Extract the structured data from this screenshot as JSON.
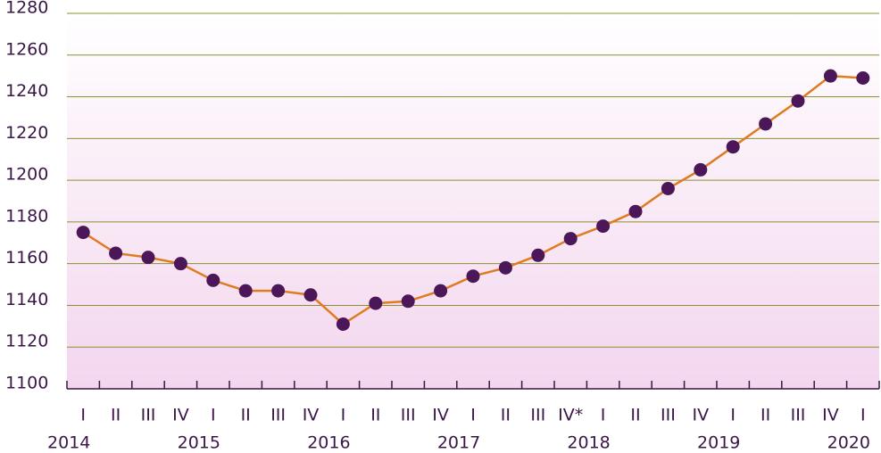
{
  "chart_data": {
    "type": "line",
    "categories": [
      "I",
      "II",
      "III",
      "IV",
      "I",
      "II",
      "III",
      "IV",
      "I",
      "II",
      "III",
      "IV",
      "I",
      "II",
      "III",
      "IV*",
      "I",
      "II",
      "III",
      "IV",
      "I",
      "II",
      "III",
      "IV",
      "I"
    ],
    "year_labels": [
      "2014",
      null,
      null,
      null,
      "2015",
      null,
      null,
      null,
      "2016",
      null,
      null,
      null,
      "2017",
      null,
      null,
      null,
      "2018",
      null,
      null,
      null,
      "2019",
      null,
      null,
      null,
      "2020"
    ],
    "series": [
      {
        "color": "#e07b1f",
        "marker_color": "#4b1759",
        "values": [
          1175,
          1165,
          1163,
          1160,
          1152,
          1147,
          1147,
          1145,
          1131,
          1141,
          1142,
          1147,
          1154,
          1158,
          1164,
          1172,
          1178,
          1185,
          1196,
          1205,
          1216,
          1227,
          1238,
          1250,
          1249
        ]
      }
    ],
    "ylim": [
      1100,
      1280
    ],
    "yticks": [
      1100,
      1120,
      1140,
      1160,
      1180,
      1200,
      1220,
      1240,
      1260,
      1280
    ],
    "grid": true
  }
}
